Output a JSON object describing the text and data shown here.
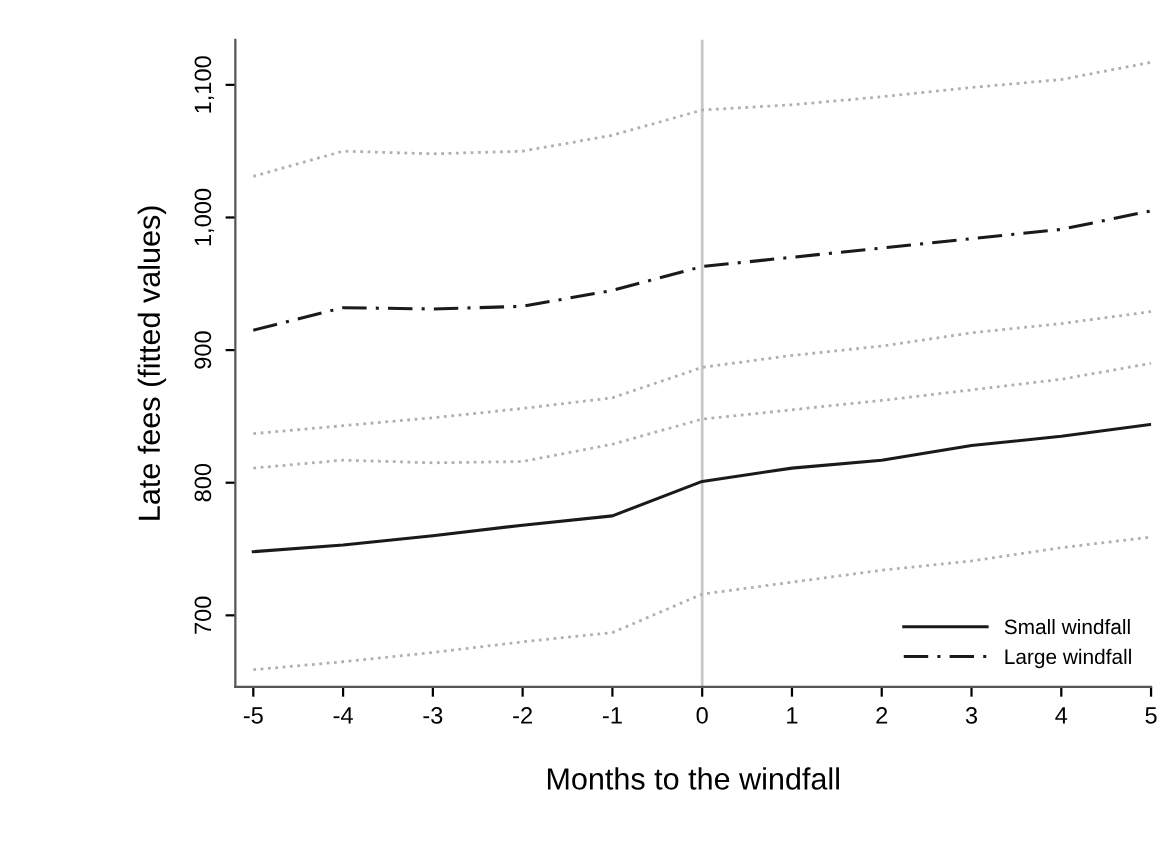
{
  "chart_data": {
    "type": "line",
    "xlabel": "Months to the windfall",
    "ylabel": "Late fees (fitted values)",
    "x": [
      -5,
      -4,
      -3,
      -2,
      -1,
      0,
      1,
      2,
      3,
      4,
      5
    ],
    "xlim": [
      -5.2,
      5
    ],
    "xticks": [
      -5,
      -4,
      -3,
      -2,
      -1,
      0,
      1,
      2,
      3,
      4,
      5
    ],
    "ylim": [
      646,
      1134
    ],
    "yticks": [
      {
        "value": 700,
        "label": "700"
      },
      {
        "value": 800,
        "label": "800"
      },
      {
        "value": 900,
        "label": "900"
      },
      {
        "value": 1000,
        "label": "1,000"
      },
      {
        "value": 1100,
        "label": "1,100"
      }
    ],
    "series": [
      {
        "name": "Small windfall",
        "color": "#1a1a1a",
        "line_style": "solid",
        "values": [
          748,
          753,
          760,
          768,
          775,
          801,
          811,
          817,
          828,
          835,
          844
        ]
      },
      {
        "name": "Large windfall",
        "color": "#1a1a1a",
        "line_style": "dashdot",
        "values": [
          915,
          932,
          931,
          933,
          945,
          963,
          970,
          977,
          984,
          991,
          1005
        ]
      },
      {
        "color": "#b0b0b0",
        "line_style": "dotted",
        "values": [
          1031,
          1050,
          1048,
          1050,
          1062,
          1081,
          1085,
          1091,
          1098,
          1104,
          1117
        ]
      },
      {
        "color": "#b0b0b0",
        "line_style": "dotted",
        "values": [
          837,
          843,
          849,
          856,
          864,
          887,
          896,
          903,
          913,
          920,
          929
        ]
      },
      {
        "color": "#b0b0b0",
        "line_style": "dotted",
        "values": [
          811,
          817,
          815,
          816,
          829,
          848,
          855,
          862,
          870,
          878,
          890
        ]
      },
      {
        "color": "#b0b0b0",
        "line_style": "dotted",
        "values": [
          659,
          665,
          672,
          680,
          687,
          716,
          725,
          734,
          741,
          751,
          759
        ]
      }
    ],
    "ref_lines": [
      {
        "axis": "x",
        "value": 0,
        "color": "#c8c8c8",
        "line_style": "solid"
      }
    ],
    "grid": false,
    "legend": "bottom right",
    "marker": "none"
  }
}
